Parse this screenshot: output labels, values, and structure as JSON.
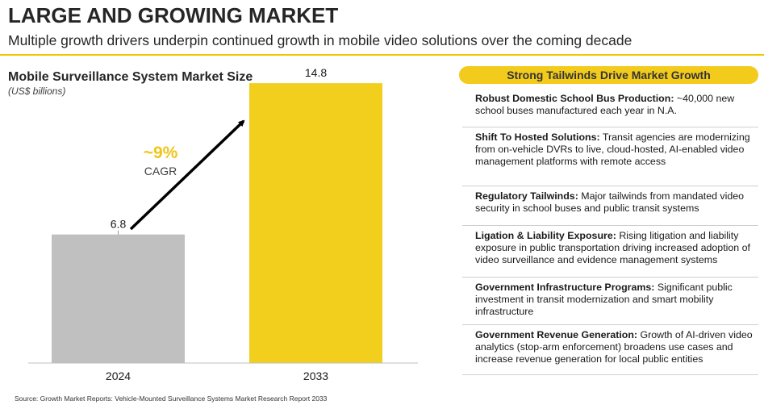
{
  "header": {
    "title": "LARGE AND GROWING MARKET",
    "subtitle": "Multiple growth drivers underpin continued growth in mobile video solutions over the coming decade"
  },
  "chart_data": {
    "type": "bar",
    "title": "Mobile Surveillance System Market Size",
    "unit": "(US$ billions)",
    "categories": [
      "2024",
      "2033"
    ],
    "values": [
      6.8,
      14.8
    ],
    "value_labels": [
      "6.8",
      "14.8"
    ],
    "colors": [
      "#c0c0c0",
      "#f2cf1d"
    ],
    "ylim": [
      0,
      16
    ],
    "grid": false,
    "annotation": {
      "value": "~9%",
      "label": "CAGR",
      "color": "#f0c419"
    }
  },
  "tailwinds": {
    "header": "Strong Tailwinds Drive Market Growth",
    "items": [
      {
        "title": "Robust Domestic School Bus Production:",
        "text": " ~40,000 new school buses manufactured each year in N.A."
      },
      {
        "title": "Shift To Hosted Solutions:",
        "text": " Transit agencies are modernizing from on-vehicle DVRs to live, cloud-hosted, AI-enabled video management platforms with remote access"
      },
      {
        "title": "Regulatory Tailwinds:",
        "text": " Major tailwinds from mandated video security in school buses and public transit systems"
      },
      {
        "title": "Ligation & Liability Exposure:",
        "text": " Rising litigation and liability exposure in public transportation driving increased adoption of video surveillance and evidence management systems"
      },
      {
        "title": "Government Infrastructure Programs:",
        "text": " Significant public investment in transit modernization and smart mobility infrastructure"
      },
      {
        "title": "Government Revenue Generation:",
        "text": " Growth of AI-driven video analytics (stop-arm enforcement) broadens use cases and increase revenue generation for local public entities"
      }
    ]
  },
  "footer": {
    "source": "Source: Growth Market Reports: Vehicle-Mounted Surveillance Systems Market Research Report 2033"
  }
}
